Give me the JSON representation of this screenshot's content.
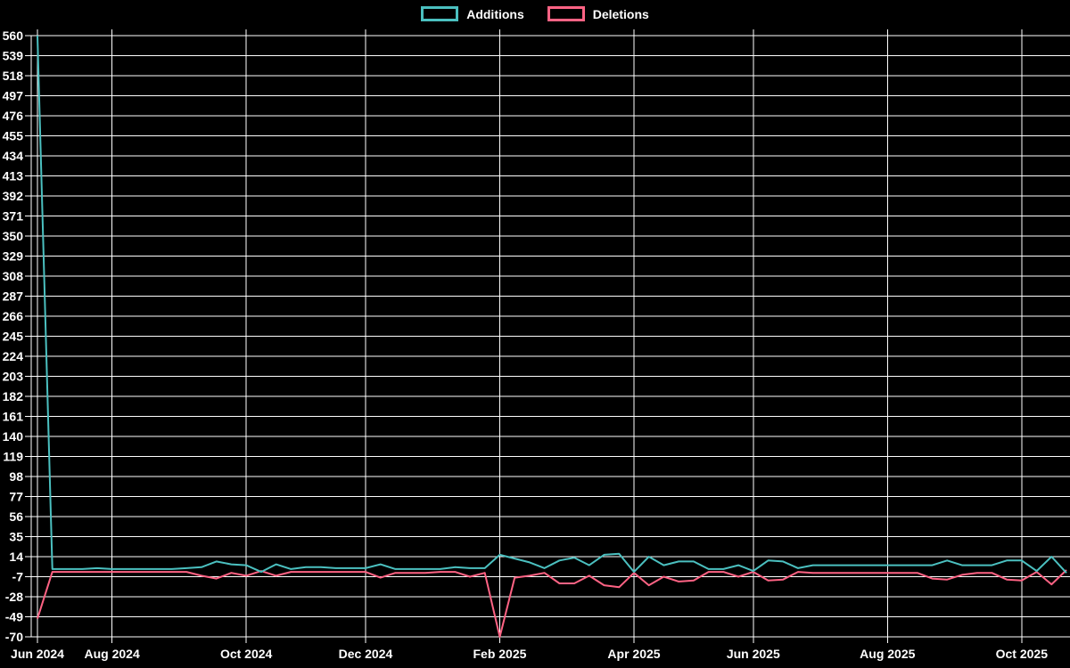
{
  "chart_data": {
    "type": "line",
    "title": "",
    "legend_position": "top",
    "background": "#000000",
    "grid": true,
    "grid_color": "#ffffff",
    "text_color": "#ffffff",
    "x_unit": "week",
    "ylim": [
      -70,
      560
    ],
    "y_tick_step": 21,
    "y_ticks": [
      560,
      539,
      518,
      497,
      476,
      455,
      434,
      413,
      392,
      371,
      350,
      329,
      308,
      287,
      266,
      245,
      224,
      203,
      182,
      161,
      140,
      119,
      98,
      77,
      56,
      35,
      14,
      -7,
      -28,
      -49,
      -70
    ],
    "x_ticks": [
      {
        "label": "Jun 2024",
        "week": 0
      },
      {
        "label": "Aug 2024",
        "week": 5
      },
      {
        "label": "Oct 2024",
        "week": 14
      },
      {
        "label": "Dec 2024",
        "week": 22
      },
      {
        "label": "Feb 2025",
        "week": 31
      },
      {
        "label": "Apr 2025",
        "week": 40
      },
      {
        "label": "Jun 2025",
        "week": 48
      },
      {
        "label": "Aug 2025",
        "week": 57
      },
      {
        "label": "Oct 2025",
        "week": 66
      }
    ],
    "series": [
      {
        "name": "Additions",
        "color": "#4bc0c0",
        "values": [
          560,
          1,
          1,
          1,
          2,
          1,
          1,
          1,
          1,
          1,
          2,
          3,
          9,
          6,
          5,
          -2,
          6,
          1,
          3,
          3,
          2,
          2,
          2,
          6,
          1,
          1,
          1,
          1,
          3,
          2,
          2,
          16,
          12,
          8,
          2,
          10,
          13,
          5,
          16,
          17,
          -2,
          14,
          5,
          9,
          9,
          1,
          1,
          5,
          -1,
          10,
          9,
          2,
          5,
          5,
          5,
          5,
          5,
          5,
          5,
          5,
          5,
          10,
          5,
          5,
          5,
          10,
          10,
          -1,
          14,
          -3
        ]
      },
      {
        "name": "Deletions",
        "color": "#ff6384",
        "values": [
          -51,
          -2,
          -2,
          -2,
          -2,
          -2,
          -2,
          -2,
          -2,
          -2,
          -2,
          -6,
          -9,
          -3,
          -6,
          -1,
          -6,
          -2,
          -2,
          -2,
          -2,
          -2,
          -2,
          -8,
          -3,
          -3,
          -3,
          -2,
          -2,
          -7,
          -3,
          -70,
          -8,
          -6,
          -3,
          -14,
          -14,
          -6,
          -16,
          -18,
          -3,
          -16,
          -7,
          -12,
          -11,
          -2,
          -2,
          -7,
          -2,
          -11,
          -10,
          -2,
          -3,
          -3,
          -3,
          -3,
          -3,
          -3,
          -3,
          -3,
          -9,
          -10,
          -5,
          -3,
          -3,
          -10,
          -11,
          -2,
          -15,
          0
        ]
      }
    ]
  }
}
